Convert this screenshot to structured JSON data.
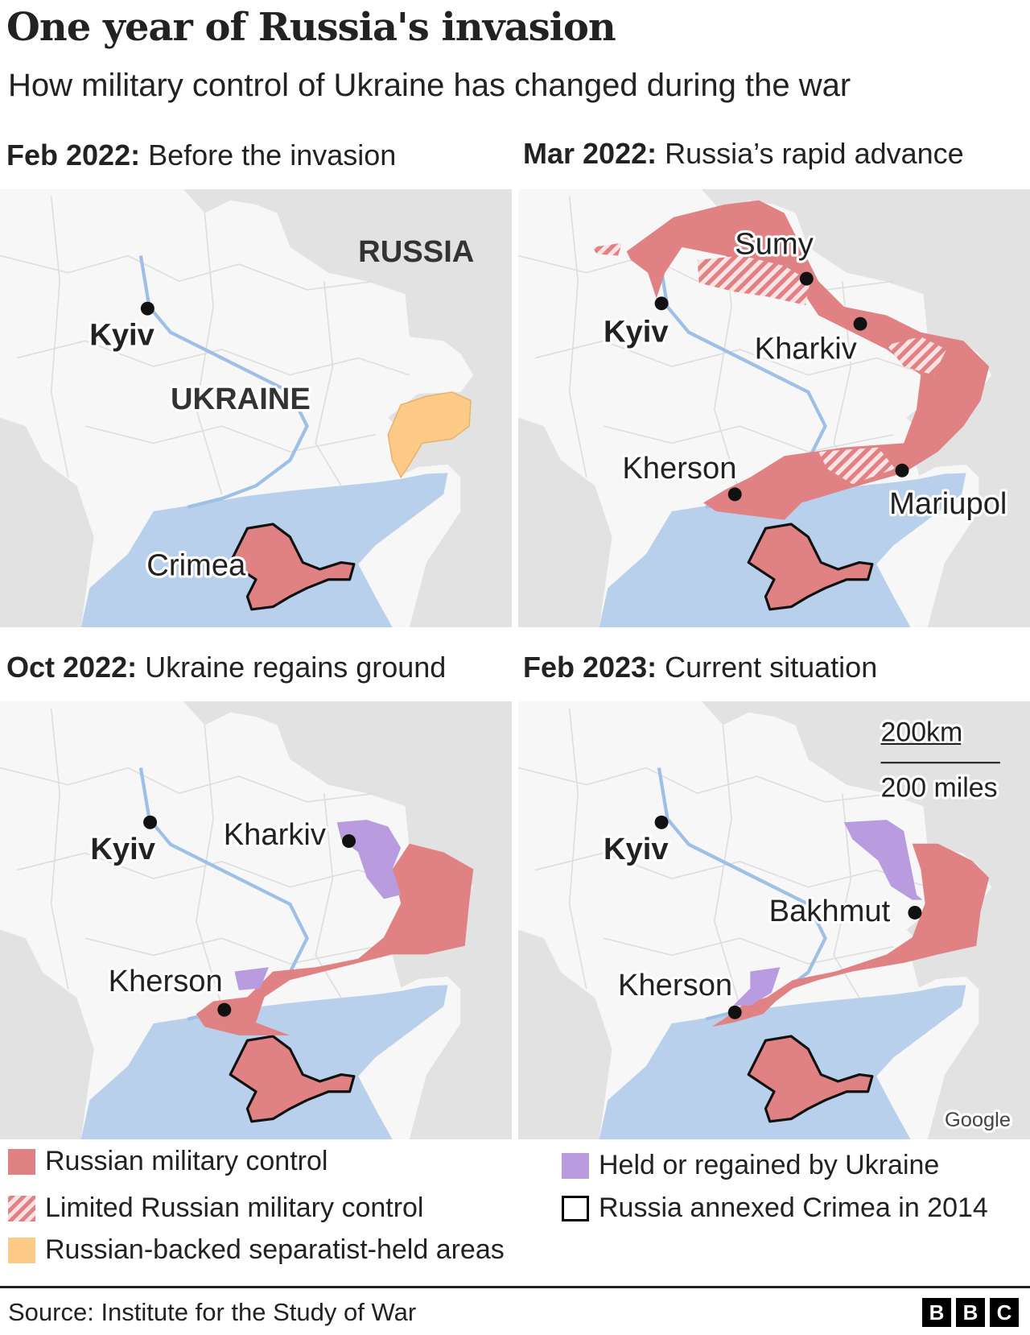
{
  "title": "One year of Russia's invasion",
  "subtitle": "How military control of Ukraine has changed during the war",
  "panels": [
    {
      "date": "Feb 2022:",
      "caption": "Before the invasion",
      "labels": {
        "russia": "RUSSIA",
        "kyiv": "Kyiv",
        "ukraine": "UKRAINE",
        "crimea": "Crimea"
      }
    },
    {
      "date": "Mar 2022:",
      "caption": "Russia’s rapid advance",
      "labels": {
        "sumy": "Sumy",
        "kyiv": "Kyiv",
        "kharkiv": "Kharkiv",
        "kherson": "Kherson",
        "mariupol": "Mariupol"
      }
    },
    {
      "date": "Oct 2022:",
      "caption": "Ukraine regains ground",
      "labels": {
        "kyiv": "Kyiv",
        "kharkiv": "Kharkiv",
        "kherson": "Kherson"
      }
    },
    {
      "date": "Feb 2023:",
      "caption": "Current situation",
      "labels": {
        "kyiv": "Kyiv",
        "bakhmut": "Bakhmut",
        "kherson": "Kherson"
      },
      "scale_km": "200km",
      "scale_miles": "200 miles",
      "attribution": "Google"
    }
  ],
  "legend": [
    {
      "label": "Russian military control",
      "color": "#e08284"
    },
    {
      "label": "Limited Russian military control",
      "color": "#e08284",
      "pattern": "hatched"
    },
    {
      "label": "Russian-backed separatist-held areas",
      "color": "#fdcb87"
    },
    {
      "label": "Held or regained by Ukraine",
      "color": "#b99be0"
    },
    {
      "label": "Russia annexed Crimea in 2014",
      "color": "#000000",
      "pattern": "outline"
    }
  ],
  "colors": {
    "land": "#f7f7f7",
    "russia_grey": "#e2e2e2",
    "sea": "#b9d0ec"
  },
  "source": "Source: Institute for the Study of War",
  "logo": [
    "B",
    "B",
    "C"
  ]
}
